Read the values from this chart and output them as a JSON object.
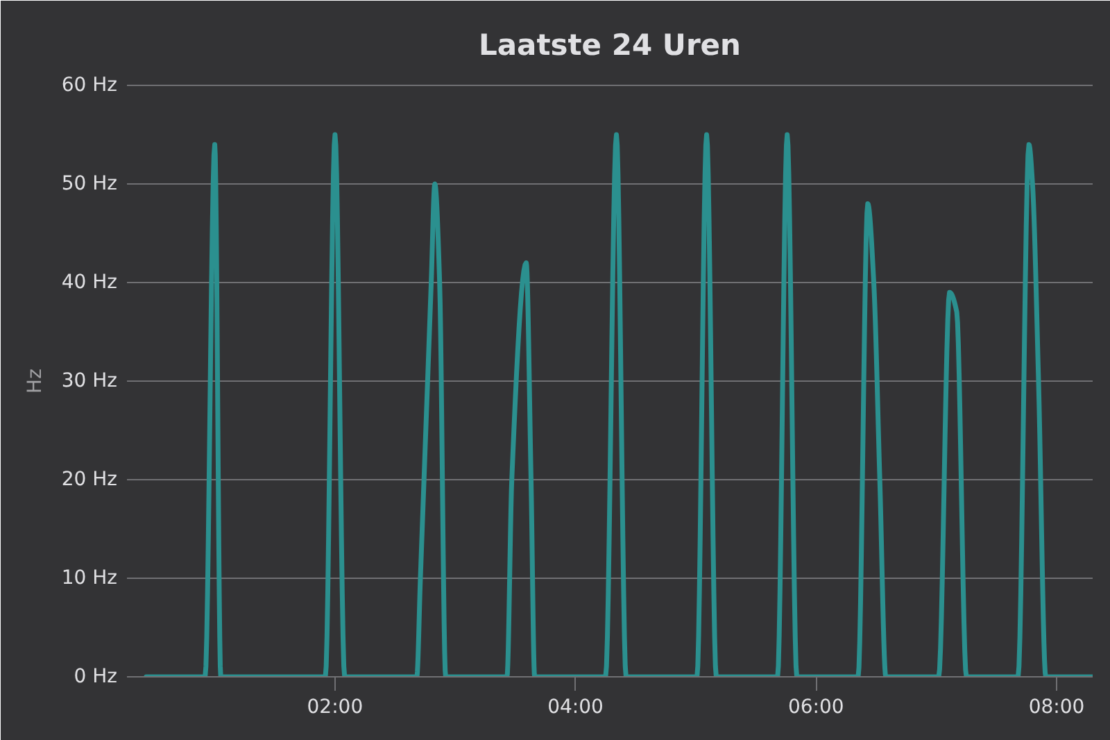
{
  "chart_data": {
    "type": "line",
    "title": "Laatste 24 Uren",
    "ylabel": "Hz",
    "x": [
      0.43,
      0.92,
      1.0,
      1.05,
      1.92,
      2.0,
      2.08,
      2.68,
      2.71,
      2.77,
      2.8,
      2.83,
      2.87,
      2.92,
      3.43,
      3.47,
      3.59,
      3.63,
      3.66,
      4.25,
      4.34,
      4.42,
      5.01,
      5.09,
      5.17,
      5.68,
      5.76,
      5.84,
      6.35,
      6.43,
      6.48,
      6.53,
      6.58,
      7.02,
      7.11,
      7.17,
      7.25,
      7.68,
      7.77,
      7.8,
      7.85,
      7.91,
      8.3
    ],
    "series": [
      {
        "color": "#2b908f",
        "values": [
          0,
          0,
          54,
          0,
          0,
          55,
          0,
          0,
          10,
          30,
          40,
          50,
          40,
          0,
          0,
          20,
          42,
          20,
          0,
          0,
          55,
          0,
          0,
          55,
          0,
          0,
          55,
          0,
          0,
          48,
          40,
          20,
          0,
          0,
          39,
          37,
          0,
          0,
          54,
          50,
          30,
          0,
          0
        ]
      }
    ],
    "xlim": [
      0.27,
      8.3
    ],
    "xticks": [
      {
        "value": 2,
        "label": "02:00"
      },
      {
        "value": 4,
        "label": "04:00"
      },
      {
        "value": 6,
        "label": "06:00"
      },
      {
        "value": 8,
        "label": "08:00"
      }
    ],
    "ylim": [
      0,
      60
    ],
    "yticks": [
      {
        "value": 0,
        "label": "0 Hz"
      },
      {
        "value": 10,
        "label": "10 Hz"
      },
      {
        "value": 20,
        "label": "20 Hz"
      },
      {
        "value": 30,
        "label": "30 Hz"
      },
      {
        "value": 40,
        "label": "40 Hz"
      },
      {
        "value": 50,
        "label": "50 Hz"
      },
      {
        "value": 60,
        "label": "60 Hz"
      }
    ],
    "grid": "y",
    "line_style": "solid"
  }
}
